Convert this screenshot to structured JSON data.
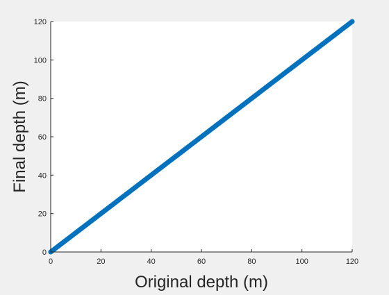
{
  "chart_data": {
    "type": "line",
    "title": "",
    "xlabel": "Original depth (m)",
    "ylabel": "Final depth (m)",
    "xlim": [
      0,
      120
    ],
    "ylim": [
      0,
      120
    ],
    "xticks": [
      0,
      20,
      40,
      60,
      80,
      100,
      120
    ],
    "yticks": [
      0,
      20,
      40,
      60,
      80,
      100,
      120
    ],
    "xtick_labels": [
      "0",
      "20",
      "40",
      "60",
      "80",
      "100",
      "120"
    ],
    "ytick_labels": [
      "0",
      "20",
      "40",
      "60",
      "80",
      "100",
      "120"
    ],
    "grid": false,
    "legend": "none",
    "series": [
      {
        "color": "#0072bd",
        "x": [
          0,
          10,
          20,
          30,
          40,
          50,
          60,
          70,
          80,
          90,
          100,
          110,
          120
        ],
        "y": [
          0,
          10,
          20,
          30,
          40,
          50,
          60,
          70,
          80,
          90,
          100,
          110,
          120
        ]
      }
    ]
  },
  "colors": {
    "background": "#f0f0f0",
    "plot_area": "#ffffff",
    "axis": "#262626",
    "series": "#0072bd"
  }
}
